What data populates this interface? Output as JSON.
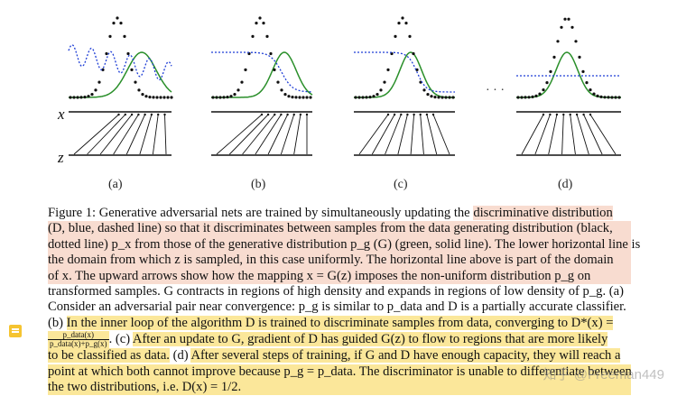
{
  "figure": {
    "axis_x": "x",
    "axis_z": "z",
    "panels": [
      "(a)",
      "(b)",
      "(c)",
      "(d)"
    ],
    "ellipsis": "· · ·"
  },
  "caption": {
    "l1a": "Figure 1: Generative adversarial nets are trained by simultaneously updating the ",
    "l1b": "discriminative distribution",
    "l2": "(D, blue, dashed line) so that it discriminates between samples from the data generating distribution (black,",
    "l3": "dotted line) p_x from those of the generative distribution p_g (G) (green, solid line). The lower horizontal line is",
    "l4": "the domain from which z is sampled, in this case uniformly. The horizontal line above is part of the domain",
    "l5": "of x. The upward arrows show how the mapping x = G(z) imposes the non-uniform distribution p_g on",
    "l6": "transformed samples. G contracts in regions of high density and expands in regions of low density of p_g. (a)",
    "l7": "Consider an adversarial pair near convergence: p_g is similar to p_data and D is a partially accurate classifier.",
    "l8a": "(b) ",
    "l8b": "In the inner loop of the algorithm D is trained to discriminate samples from data, converging to D*(x) =",
    "frac_num": "p_data(x)",
    "frac_den": "p_data(x)+p_g(x)",
    "l9a": ". (c) ",
    "l9b": "After an update to G, gradient of D has guided G(z) to flow to regions that are more likely",
    "l10a": "to be classified as data.",
    "l10b": " (d) ",
    "l10c": "After several steps of training, if G and D have enough capacity, they will reach a",
    "l11": "point at which both cannot improve because p_g = p_data. The discriminator is unable to differentiate between",
    "l12": "the two distributions, i.e. D(x) = 1/2."
  },
  "watermark": "知乎 @Freeman449"
}
